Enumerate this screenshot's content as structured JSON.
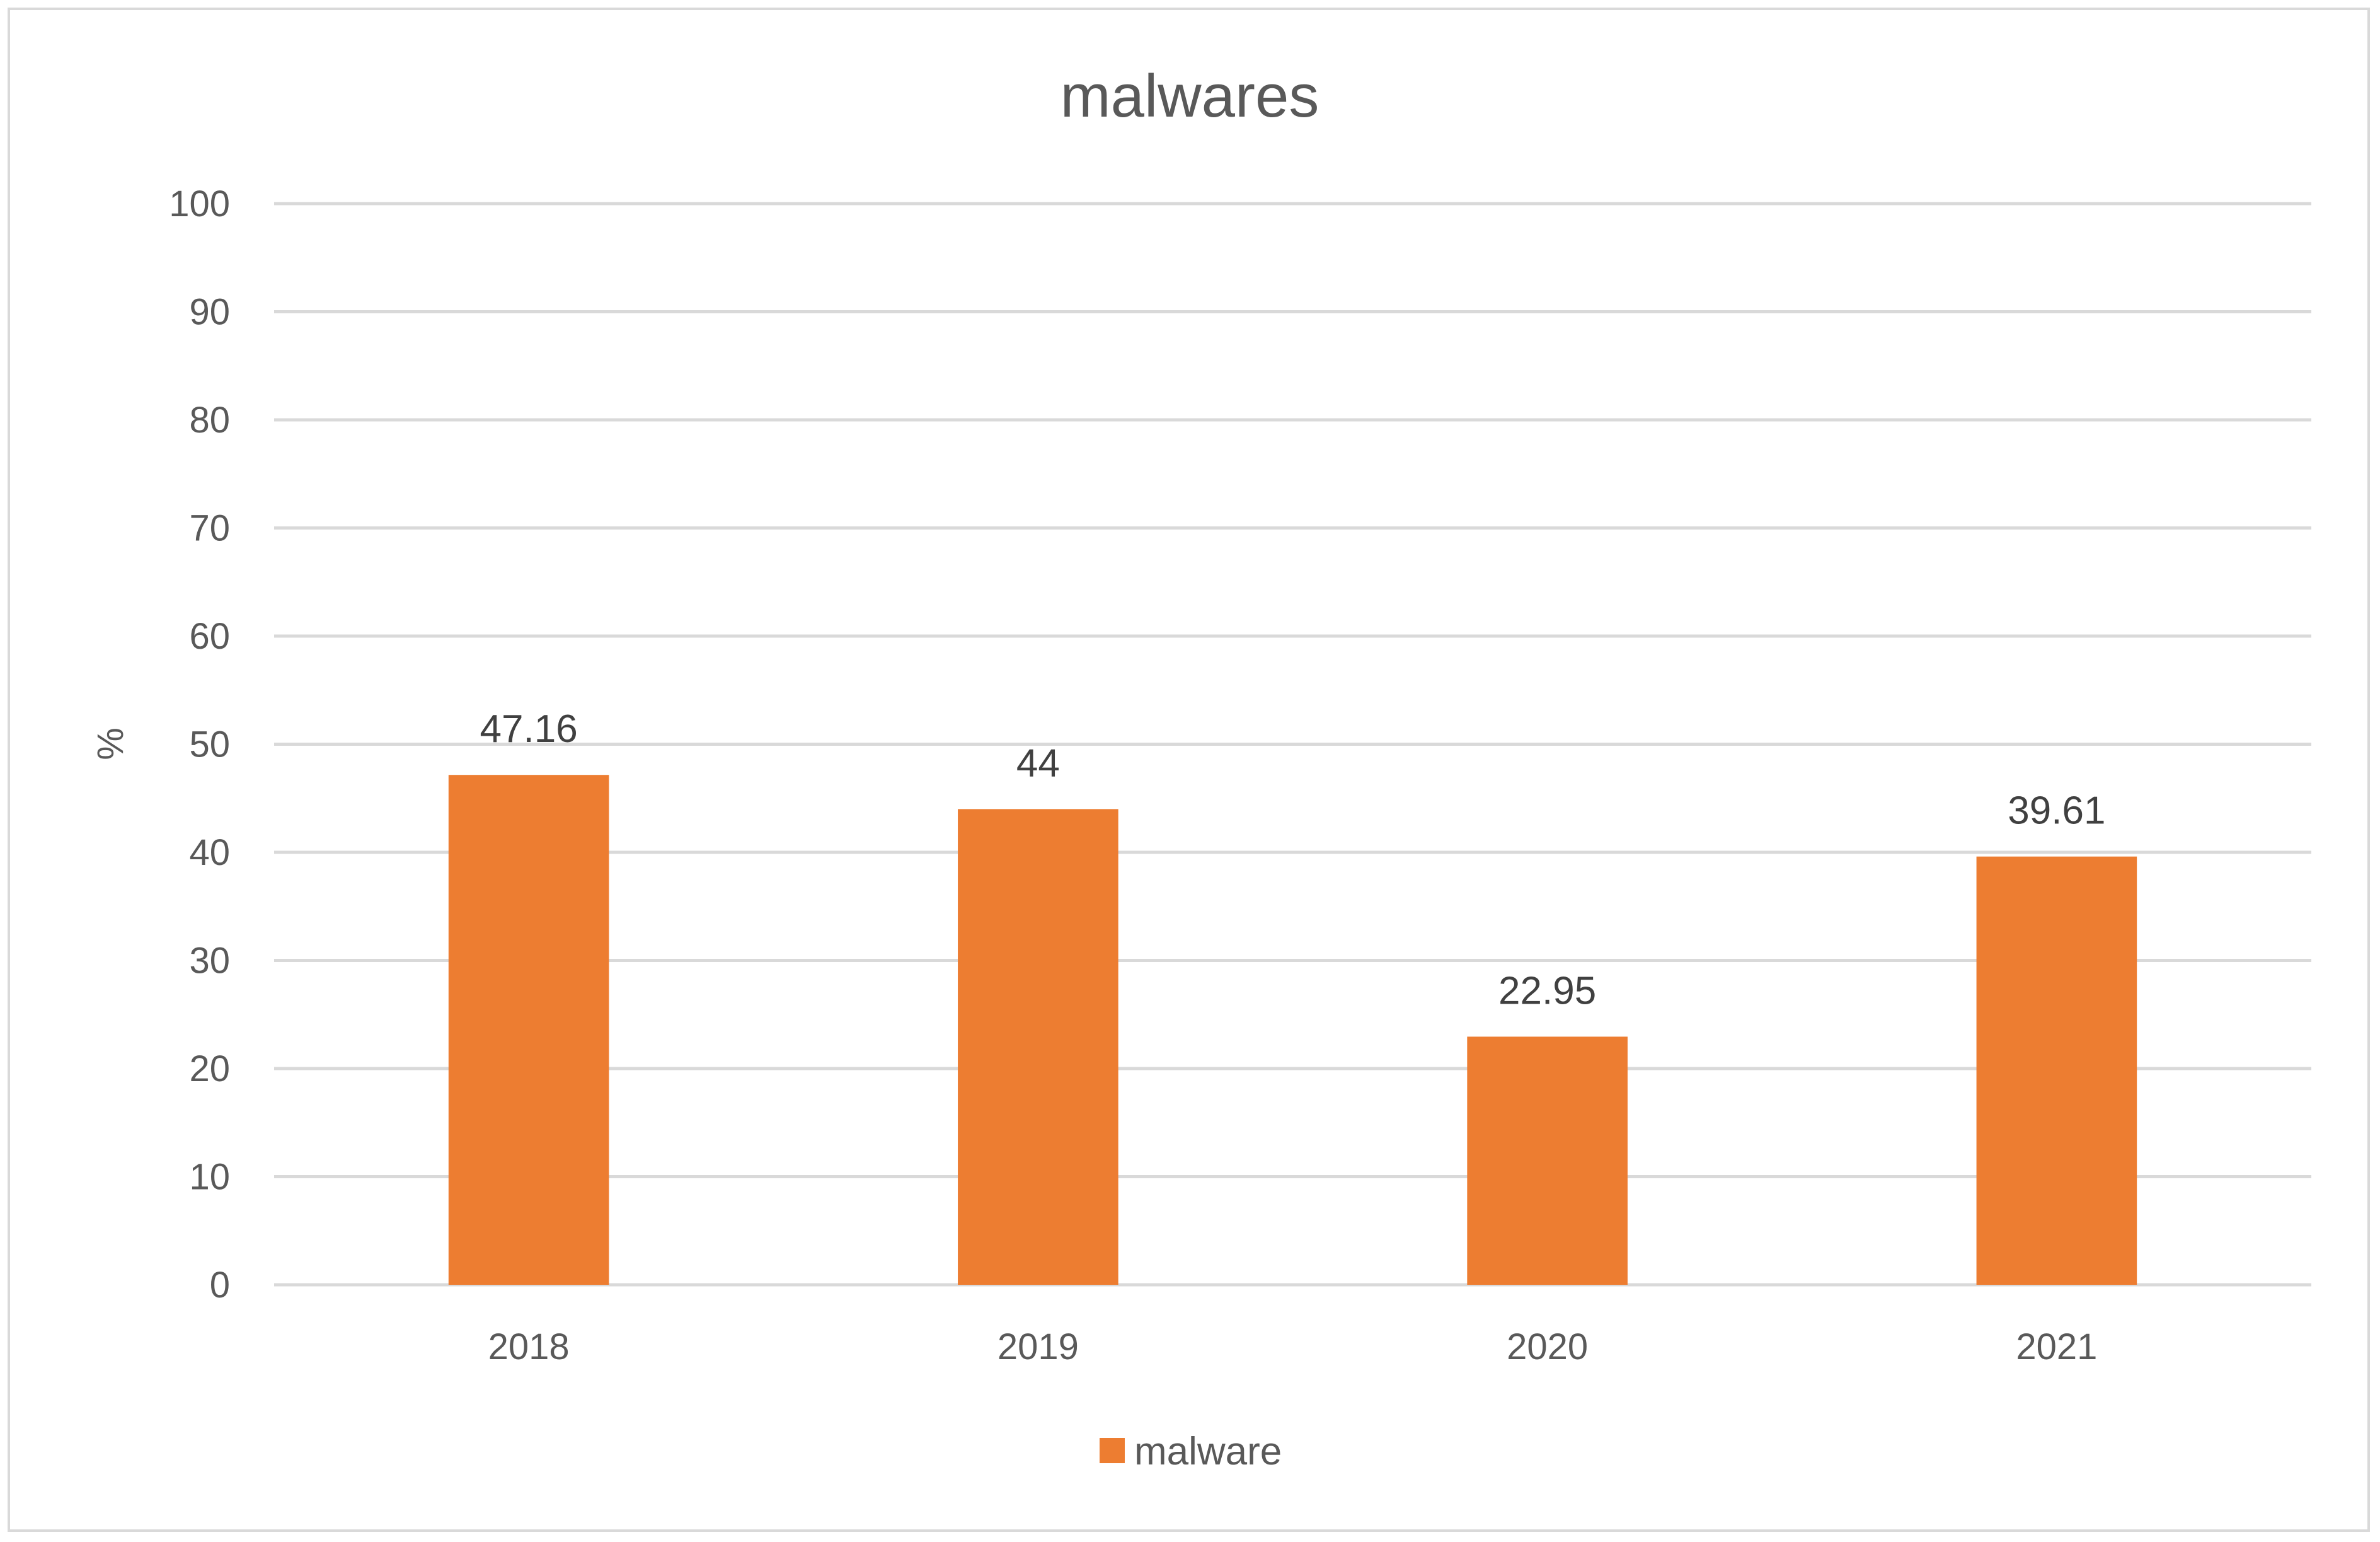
{
  "chart_data": {
    "type": "bar",
    "title": "malwares",
    "xlabel": "",
    "ylabel": "%",
    "categories": [
      "2018",
      "2019",
      "2020",
      "2021"
    ],
    "series": [
      {
        "name": "malware",
        "values": [
          47.16,
          44,
          22.95,
          39.61
        ],
        "labels": [
          "47.16",
          "44",
          "22.95",
          "39.61"
        ],
        "color": "#ED7D31"
      }
    ],
    "ylim": [
      0,
      100
    ],
    "yticks": [
      0,
      10,
      20,
      30,
      40,
      50,
      60,
      70,
      80,
      90,
      100
    ],
    "grid": true,
    "legend_position": "bottom"
  },
  "colors": {
    "gridline": "#d9d9d9",
    "frame": "#d9d9d9",
    "text": "#595959"
  }
}
